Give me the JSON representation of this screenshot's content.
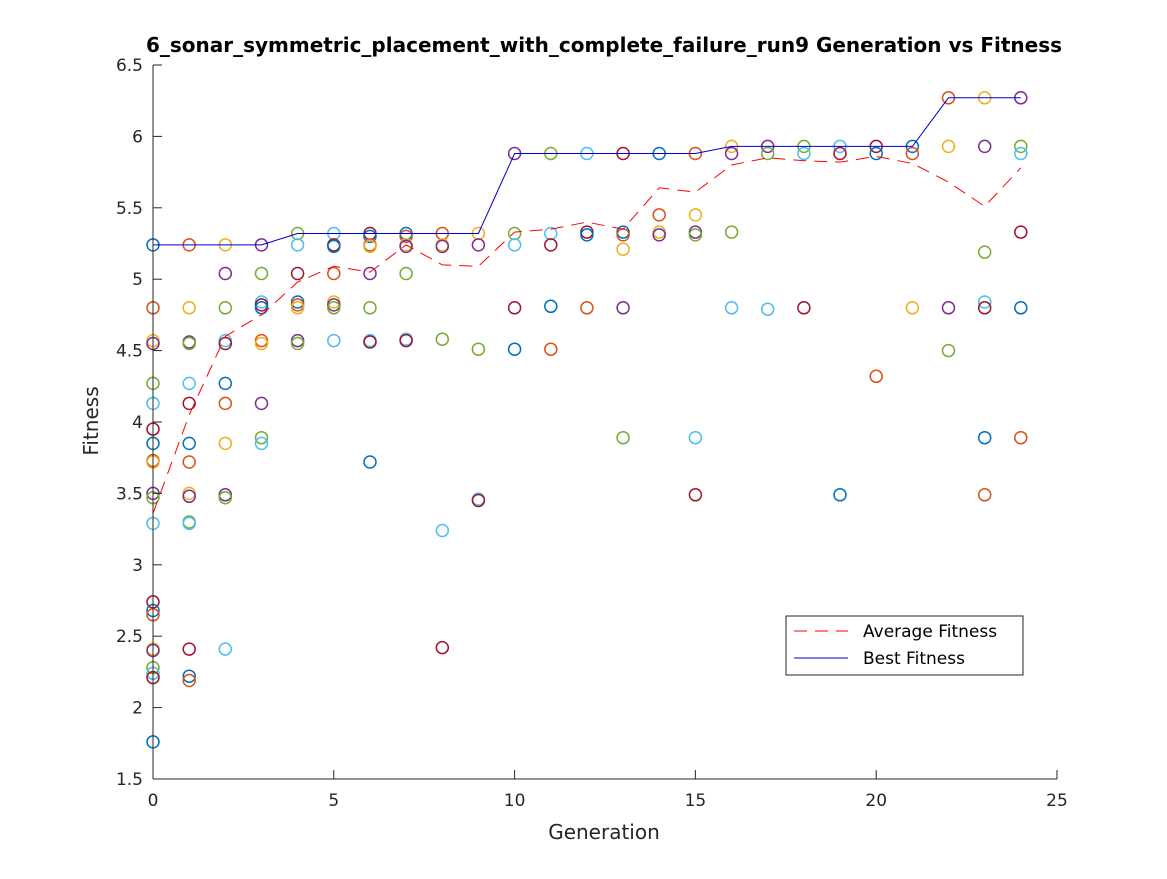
{
  "chart_data": {
    "type": "scatter",
    "title": "6_sonar_symmetric_placement_with_complete_failure_run9 Generation vs Fitness",
    "xlabel": "Generation",
    "ylabel": "Fitness",
    "xlim": [
      0,
      25
    ],
    "ylim": [
      1.5,
      6.5
    ],
    "x_ticks": [
      0,
      5,
      10,
      15,
      20,
      25
    ],
    "y_ticks": [
      1.5,
      2,
      2.5,
      3,
      3.5,
      4,
      4.5,
      5,
      5.5,
      6,
      6.5
    ],
    "x_tick_labels": [
      "0",
      "5",
      "10",
      "15",
      "20",
      "25"
    ],
    "y_tick_labels": [
      "1.5",
      "2",
      "2.5",
      "3",
      "3.5",
      "4",
      "4.5",
      "5",
      "5.5",
      "6",
      "6.5"
    ],
    "grid": false,
    "legend_position": "bottom-right",
    "point_colors": [
      "#0072BD",
      "#D95319",
      "#EDB120",
      "#7E2F8E",
      "#77AC30",
      "#4DBEEE",
      "#A2142F"
    ],
    "generations": [
      {
        "x": 0,
        "values": [
          5.24,
          4.8,
          4.57,
          4.55,
          4.27,
          4.13,
          3.95,
          3.85,
          3.73,
          3.72,
          3.5,
          3.47,
          3.29,
          2.74,
          2.68,
          2.65,
          2.41,
          2.4,
          2.28,
          2.24,
          2.21,
          1.76
        ]
      },
      {
        "x": 1,
        "values": [
          5.24,
          4.8,
          4.56,
          4.55,
          4.27,
          4.13,
          3.85,
          3.72,
          3.5,
          3.48,
          3.3,
          3.29,
          2.41,
          2.22,
          2.19
        ]
      },
      {
        "x": 2,
        "values": [
          5.24,
          5.04,
          4.8,
          4.57,
          4.55,
          4.27,
          4.13,
          3.85,
          3.49,
          3.47,
          2.41
        ]
      },
      {
        "x": 3,
        "values": [
          5.24,
          5.04,
          4.84,
          4.82,
          4.8,
          4.57,
          4.55,
          4.13,
          3.89,
          3.85
        ]
      },
      {
        "x": 4,
        "values": [
          5.32,
          5.24,
          5.04,
          4.84,
          4.82,
          4.8,
          4.57,
          4.55
        ]
      },
      {
        "x": 5,
        "values": [
          5.32,
          5.24,
          5.23,
          5.04,
          4.84,
          4.82,
          4.8,
          4.57
        ]
      },
      {
        "x": 6,
        "values": [
          5.32,
          5.3,
          5.24,
          5.23,
          5.04,
          4.8,
          4.57,
          4.56,
          3.72
        ]
      },
      {
        "x": 7,
        "values": [
          5.32,
          5.3,
          5.24,
          5.23,
          5.04,
          4.58,
          4.57
        ]
      },
      {
        "x": 8,
        "values": [
          5.32,
          5.24,
          5.23,
          4.58,
          3.24,
          2.42
        ]
      },
      {
        "x": 9,
        "values": [
          5.32,
          5.24,
          4.51,
          3.46,
          3.45
        ]
      },
      {
        "x": 10,
        "values": [
          5.88,
          5.32,
          5.24,
          4.8,
          4.51
        ]
      },
      {
        "x": 11,
        "values": [
          5.88,
          5.32,
          5.24,
          4.81,
          4.51
        ]
      },
      {
        "x": 12,
        "values": [
          5.88,
          5.33,
          5.31,
          4.8
        ]
      },
      {
        "x": 13,
        "values": [
          5.88,
          5.33,
          5.31,
          5.21,
          4.8,
          3.89
        ]
      },
      {
        "x": 14,
        "values": [
          5.88,
          5.45,
          5.33,
          5.31
        ]
      },
      {
        "x": 15,
        "values": [
          5.88,
          5.45,
          5.33,
          5.31,
          3.89,
          3.49
        ]
      },
      {
        "x": 16,
        "values": [
          5.93,
          5.88,
          5.33,
          4.8
        ]
      },
      {
        "x": 17,
        "values": [
          5.93,
          5.88,
          4.79
        ]
      },
      {
        "x": 18,
        "values": [
          5.93,
          5.88,
          4.8
        ]
      },
      {
        "x": 19,
        "values": [
          5.93,
          5.88,
          3.49
        ]
      },
      {
        "x": 20,
        "values": [
          5.93,
          5.88,
          4.32
        ]
      },
      {
        "x": 21,
        "values": [
          5.93,
          5.88,
          4.8
        ]
      },
      {
        "x": 22,
        "values": [
          6.27,
          5.93,
          4.8,
          4.5
        ]
      },
      {
        "x": 23,
        "values": [
          6.27,
          5.93,
          5.19,
          4.84,
          4.8,
          3.89,
          3.49
        ]
      },
      {
        "x": 24,
        "values": [
          6.27,
          5.93,
          5.88,
          5.33,
          4.8,
          3.89
        ]
      }
    ],
    "series": [
      {
        "name": "Average Fitness",
        "style": "dashed",
        "color": "#FF0000",
        "x": [
          0,
          1,
          2,
          3,
          4,
          5,
          6,
          7,
          8,
          9,
          10,
          11,
          12,
          13,
          14,
          15,
          16,
          17,
          18,
          19,
          20,
          21,
          22,
          23,
          24
        ],
        "values": [
          3.36,
          4.05,
          4.6,
          4.75,
          4.98,
          5.09,
          5.05,
          5.24,
          5.1,
          5.09,
          5.33,
          5.35,
          5.4,
          5.35,
          5.64,
          5.61,
          5.8,
          5.85,
          5.83,
          5.82,
          5.86,
          5.81,
          5.68,
          5.51,
          5.78
        ]
      },
      {
        "name": "Best Fitness",
        "style": "solid",
        "color": "#0000CC",
        "x": [
          0,
          1,
          2,
          3,
          4,
          5,
          6,
          7,
          8,
          9,
          10,
          11,
          12,
          13,
          14,
          15,
          16,
          17,
          18,
          19,
          20,
          21,
          22,
          23,
          24
        ],
        "values": [
          5.24,
          5.24,
          5.24,
          5.24,
          5.32,
          5.32,
          5.32,
          5.32,
          5.32,
          5.32,
          5.88,
          5.88,
          5.88,
          5.88,
          5.88,
          5.88,
          5.93,
          5.93,
          5.93,
          5.93,
          5.93,
          5.93,
          6.27,
          6.27,
          6.27
        ]
      }
    ]
  }
}
